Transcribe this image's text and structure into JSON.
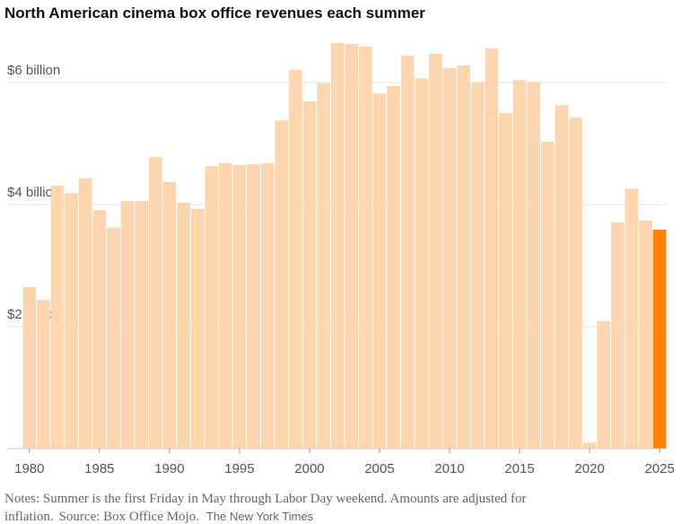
{
  "chart_data": {
    "type": "bar",
    "title": "North American cinema box office revenues each summer",
    "notes": "Notes: Summer is the first Friday in May through Labor Day weekend. Amounts are adjusted for inflation.",
    "source": "Source: Box Office Mojo.",
    "credit": "The New York Times",
    "x": [
      1980,
      1981,
      1982,
      1983,
      1984,
      1985,
      1986,
      1987,
      1988,
      1989,
      1990,
      1991,
      1992,
      1993,
      1994,
      1995,
      1996,
      1997,
      1998,
      1999,
      2000,
      2001,
      2002,
      2003,
      2004,
      2005,
      2006,
      2007,
      2008,
      2009,
      2010,
      2011,
      2012,
      2013,
      2014,
      2015,
      2016,
      2017,
      2018,
      2019,
      2020,
      2021,
      2022,
      2023,
      2024,
      2025
    ],
    "values": [
      2.65,
      2.44,
      4.31,
      4.19,
      4.43,
      3.91,
      3.62,
      4.06,
      4.06,
      4.78,
      4.37,
      4.03,
      3.93,
      4.63,
      4.68,
      4.65,
      4.66,
      4.68,
      5.38,
      6.21,
      5.69,
      5.99,
      6.65,
      6.63,
      6.59,
      5.82,
      5.94,
      6.44,
      6.07,
      6.47,
      6.24,
      6.28,
      6.01,
      6.56,
      5.5,
      6.04,
      6.01,
      5.03,
      5.63,
      5.43,
      0.1,
      2.09,
      3.71,
      4.26,
      3.74,
      3.59
    ],
    "colors": [
      "#fdd5ae",
      "#fdd5ae",
      "#fdd5ae",
      "#fdd5ae",
      "#fdd5ae",
      "#fdd5ae",
      "#fdd5ae",
      "#fdd5ae",
      "#fdd5ae",
      "#fdd5ae",
      "#fdd5ae",
      "#fdd5ae",
      "#fdd5ae",
      "#fdd5ae",
      "#fdd5ae",
      "#fdd5ae",
      "#fdd5ae",
      "#fdd5ae",
      "#fdd5ae",
      "#fdd5ae",
      "#fdd5ae",
      "#fdd5ae",
      "#fdd5ae",
      "#fdd5ae",
      "#fdd5ae",
      "#fdd5ae",
      "#fdd5ae",
      "#fdd5ae",
      "#fdd5ae",
      "#fdd5ae",
      "#fdd5ae",
      "#fdd5ae",
      "#fdd5ae",
      "#fdd5ae",
      "#fdd5ae",
      "#fdd5ae",
      "#fdd5ae",
      "#fdd5ae",
      "#fdd5ae",
      "#fdd5ae",
      "#fdd5ae",
      "#fdd5ae",
      "#fdd5ae",
      "#fdd5ae",
      "#fdd5ae",
      "#fd8209"
    ],
    "xlim": [
      1979.5,
      2025.5
    ],
    "xticks": [
      1980,
      1985,
      1990,
      1995,
      2000,
      2005,
      2010,
      2015,
      2020,
      2025
    ],
    "ylim": [
      0,
      7
    ],
    "yticks": [
      {
        "value": 2,
        "label": "$2 billion"
      },
      {
        "value": 4,
        "label": "$4 billion"
      },
      {
        "value": 6,
        "label": "$6 billion"
      }
    ],
    "grid": true
  }
}
